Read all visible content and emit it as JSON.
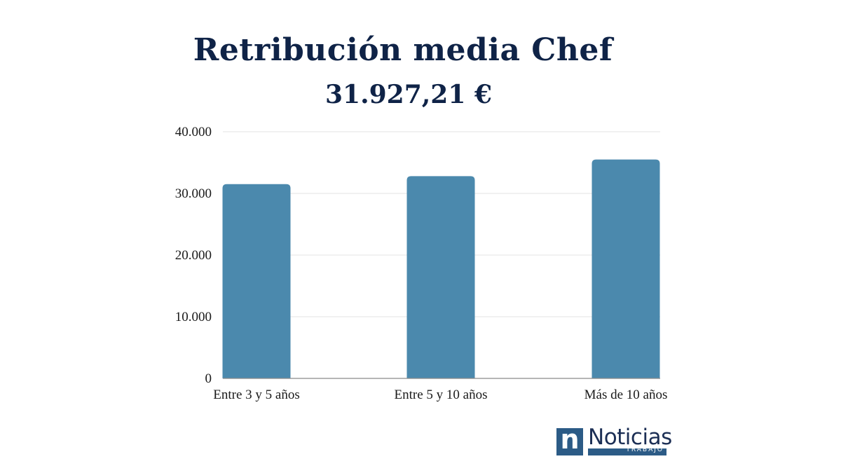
{
  "chart_data": {
    "type": "bar",
    "title": "Retribución media Chef",
    "subtitle": "31.927,21 €",
    "categories": [
      "Entre 3 y 5 años",
      "Entre 5 y 10 años",
      "Más de 10 años"
    ],
    "values": [
      31500,
      32800,
      35500
    ],
    "ylim": [
      0,
      40000
    ],
    "yticks": [
      0,
      10000,
      20000,
      30000,
      40000
    ],
    "ytick_labels": [
      "0",
      "10.000",
      "20.000",
      "30.000",
      "40.000"
    ],
    "grid": true,
    "colors": {
      "bar": "#4b89ad",
      "grid": "#e3e3e3",
      "axis": "#8a8a8a"
    }
  },
  "logo": {
    "mark": "n",
    "word": "Noticias",
    "sub": "TRABAJO"
  }
}
